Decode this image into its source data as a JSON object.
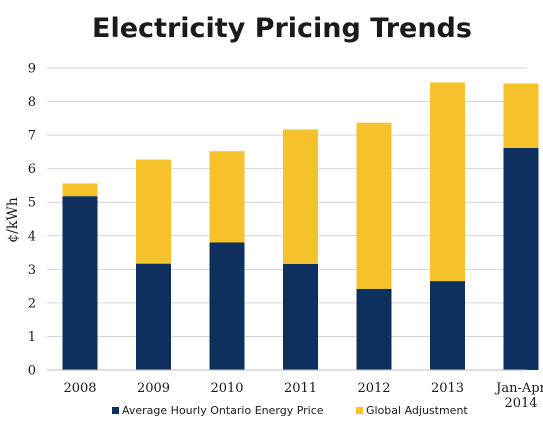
{
  "chart_data": {
    "type": "bar",
    "stacked": true,
    "title": "Electricity Pricing Trends",
    "xlabel": "",
    "ylabel": "¢/kWh",
    "ylim": [
      0,
      9
    ],
    "yticks": [
      0,
      1,
      2,
      3,
      4,
      5,
      6,
      7,
      8,
      9
    ],
    "grid": true,
    "legend_position": "bottom",
    "categories": [
      [
        "2008"
      ],
      [
        "2009"
      ],
      [
        "2010"
      ],
      [
        "2011"
      ],
      [
        "2012"
      ],
      [
        "2013"
      ],
      [
        "Jan-Apr",
        "2014"
      ]
    ],
    "series": [
      {
        "name": "Average Hourly Ontario Energy Price",
        "color": "#0f2f5f",
        "values": [
          5.18,
          3.17,
          3.8,
          3.16,
          2.42,
          2.65,
          6.62
        ]
      },
      {
        "name": "Global Adjustment",
        "color": "#f5c22b",
        "values": [
          0.38,
          3.1,
          2.72,
          4.01,
          4.95,
          5.92,
          1.92
        ]
      }
    ]
  }
}
